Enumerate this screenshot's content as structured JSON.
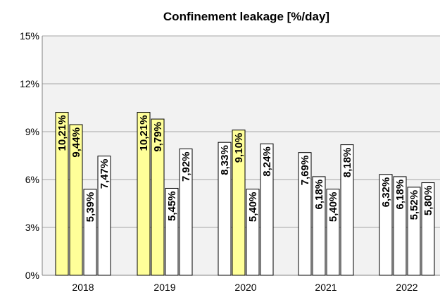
{
  "chart_data": {
    "type": "bar",
    "title": "Confinement leakage [%/day]",
    "xlabel": "",
    "ylabel": "",
    "ylim": [
      0,
      15
    ],
    "y_ticks": [
      "0%",
      "3%",
      "6%",
      "9%",
      "12%",
      "15%"
    ],
    "grid": true,
    "legend": "none",
    "categories": [
      "2018",
      "2019",
      "2020",
      "2021",
      "2022"
    ],
    "groups": [
      {
        "category": "2018",
        "bars": [
          {
            "value": 10.21,
            "label": "10,21%",
            "highlight": true
          },
          {
            "value": 9.44,
            "label": "9,44%",
            "highlight": true
          },
          {
            "value": 5.39,
            "label": "5,39%",
            "highlight": false
          },
          {
            "value": 7.47,
            "label": "7,47%",
            "highlight": false
          }
        ]
      },
      {
        "category": "2019",
        "bars": [
          {
            "value": 10.21,
            "label": "10,21%",
            "highlight": true
          },
          {
            "value": 9.79,
            "label": "9,79%",
            "highlight": true
          },
          {
            "value": 5.45,
            "label": "5,45%",
            "highlight": false
          },
          {
            "value": 7.92,
            "label": "7,92%",
            "highlight": false
          }
        ]
      },
      {
        "category": "2020",
        "bars": [
          {
            "value": 8.33,
            "label": "8,33%",
            "highlight": false
          },
          {
            "value": 9.1,
            "label": "9,10%",
            "highlight": true
          },
          {
            "value": 5.4,
            "label": "5,40%",
            "highlight": false
          },
          {
            "value": 8.24,
            "label": "8,24%",
            "highlight": false
          }
        ]
      },
      {
        "category": "2021",
        "bars": [
          {
            "value": 7.69,
            "label": "7,69%",
            "highlight": false
          },
          {
            "value": 6.18,
            "label": "6,18%",
            "highlight": false
          },
          {
            "value": 5.4,
            "label": "5,40%",
            "highlight": false
          },
          {
            "value": 8.18,
            "label": "8,18%",
            "highlight": false
          }
        ]
      },
      {
        "category": "2022",
        "bars": [
          {
            "value": 6.32,
            "label": "6,32%",
            "highlight": false
          },
          {
            "value": 6.18,
            "label": "6,18%",
            "highlight": false
          },
          {
            "value": 5.52,
            "label": "5,52%",
            "highlight": false
          },
          {
            "value": 5.8,
            "label": "5,80%",
            "highlight": false
          }
        ]
      }
    ],
    "colors": {
      "highlight": "#ffff99",
      "normal": "#ffffff",
      "bar_stroke": "#000000",
      "plot_background": "#f2f2f2",
      "grid": "#a6a6a6"
    }
  }
}
